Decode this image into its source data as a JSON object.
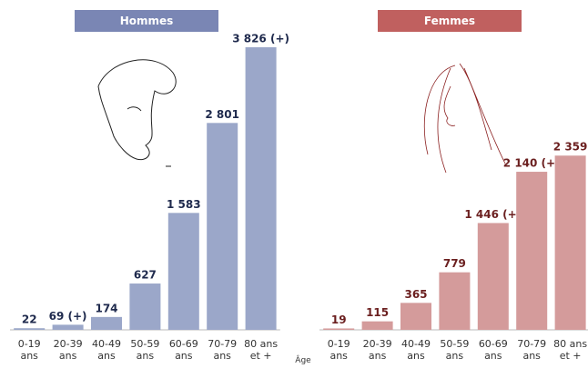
{
  "chart_data": [
    {
      "type": "bar",
      "title": "Hommes",
      "title_color": "#7a86b4",
      "categories": [
        "0-19 ans",
        "20-39 ans",
        "40-49 ans",
        "50-59 ans",
        "60-69 ans",
        "70-79 ans",
        "80 ans et +"
      ],
      "values": [
        22,
        69,
        174,
        627,
        1583,
        2801,
        3826
      ],
      "value_labels": [
        "22",
        "69 (+)",
        "174",
        "627",
        "1 583",
        "2 801",
        "3 826 (+)"
      ],
      "color": "#9ba7c9",
      "label_color": "#1f2a4d",
      "x_label": "Âge"
    },
    {
      "type": "bar",
      "title": "Femmes",
      "title_color": "#c0605f",
      "categories": [
        "0-19 ans",
        "20-39 ans",
        "40-49 ans",
        "50-59 ans",
        "60-69 ans",
        "70-79 ans",
        "80 ans et +"
      ],
      "values": [
        19,
        115,
        365,
        779,
        1446,
        2140,
        2359
      ],
      "value_labels": [
        "19",
        "115",
        "365",
        "779",
        "1 446 (+)",
        "2 140 (+)",
        "2 359"
      ],
      "color": "#d49b9b",
      "label_color": "#6b1f1f"
    }
  ]
}
